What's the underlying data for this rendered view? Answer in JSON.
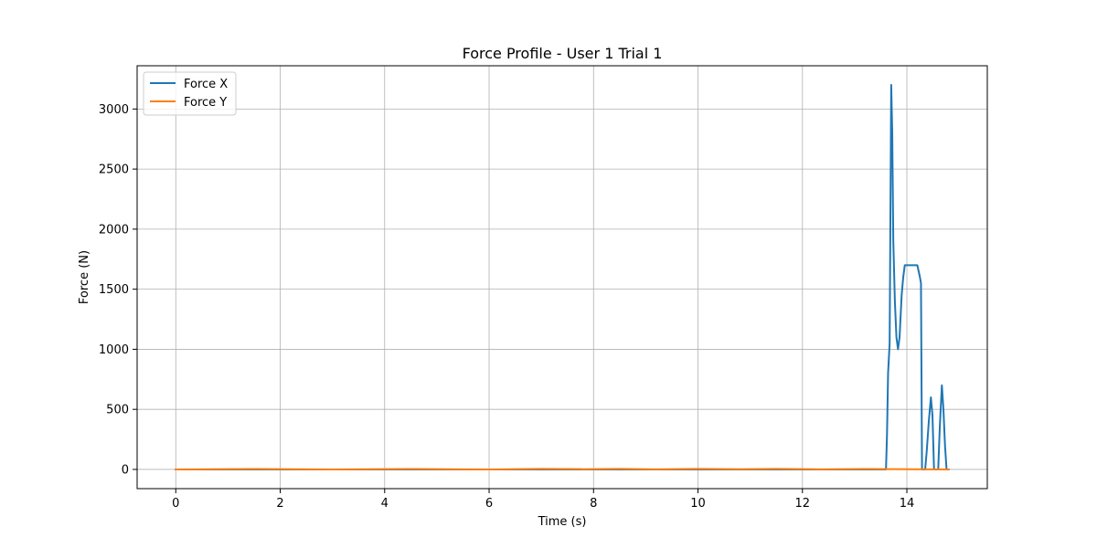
{
  "chart_data": {
    "type": "line",
    "title": "Force Profile - User 1 Trial 1",
    "xlabel": "Time (s)",
    "ylabel": "Force (N)",
    "xlim": [
      -0.74,
      15.54
    ],
    "ylim": [
      -160,
      3360
    ],
    "xticks": [
      0,
      2,
      4,
      6,
      8,
      10,
      12,
      14
    ],
    "yticks": [
      0,
      500,
      1000,
      1500,
      2000,
      2500,
      3000
    ],
    "grid": true,
    "legend_position": "top-left",
    "series": [
      {
        "name": "Force X",
        "color": "#1f77b4",
        "points": [
          [
            0,
            0
          ],
          [
            13.6,
            0
          ],
          [
            13.62,
            300
          ],
          [
            13.64,
            800
          ],
          [
            13.67,
            1050
          ],
          [
            13.7,
            3200
          ],
          [
            13.72,
            2800
          ],
          [
            13.74,
            1900
          ],
          [
            13.77,
            1400
          ],
          [
            13.8,
            1100
          ],
          [
            13.83,
            1000
          ],
          [
            13.86,
            1100
          ],
          [
            13.9,
            1450
          ],
          [
            13.93,
            1600
          ],
          [
            13.96,
            1700
          ],
          [
            14.0,
            1700
          ],
          [
            14.1,
            1700
          ],
          [
            14.2,
            1700
          ],
          [
            14.25,
            1600
          ],
          [
            14.27,
            1550
          ],
          [
            14.29,
            0
          ],
          [
            14.35,
            0
          ],
          [
            14.38,
            150
          ],
          [
            14.42,
            400
          ],
          [
            14.46,
            600
          ],
          [
            14.49,
            450
          ],
          [
            14.52,
            0
          ],
          [
            14.6,
            0
          ],
          [
            14.63,
            350
          ],
          [
            14.67,
            700
          ],
          [
            14.7,
            500
          ],
          [
            14.73,
            200
          ],
          [
            14.76,
            0
          ],
          [
            14.8,
            0
          ]
        ]
      },
      {
        "name": "Force Y",
        "color": "#ff7f0e",
        "points": [
          [
            0,
            0
          ],
          [
            1.5,
            3
          ],
          [
            3,
            0
          ],
          [
            4.5,
            3
          ],
          [
            6,
            0
          ],
          [
            7,
            4
          ],
          [
            7.8,
            2
          ],
          [
            8.5,
            4
          ],
          [
            9.2,
            1
          ],
          [
            10,
            4
          ],
          [
            10.8,
            2
          ],
          [
            11.5,
            4
          ],
          [
            12.3,
            1
          ],
          [
            13.2,
            3
          ],
          [
            14.0,
            2
          ],
          [
            14.8,
            0
          ]
        ]
      }
    ]
  }
}
